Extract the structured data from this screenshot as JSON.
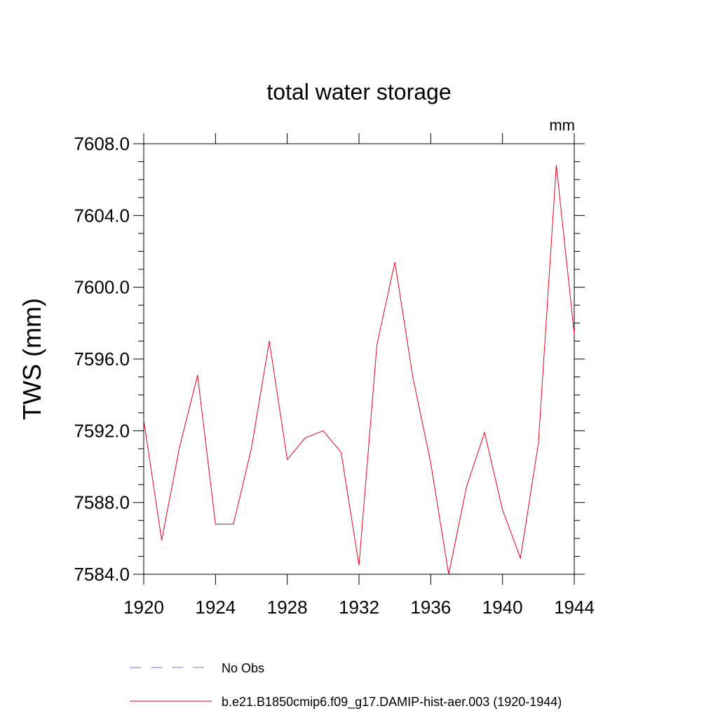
{
  "chart_data": {
    "type": "line",
    "title": "total water storage",
    "units_label": "mm",
    "xlabel": "",
    "ylabel": "TWS  (mm)",
    "xlim": [
      1920,
      1944
    ],
    "ylim": [
      7584.0,
      7608.0
    ],
    "x_ticks": [
      1920,
      1924,
      1928,
      1932,
      1936,
      1940,
      1944
    ],
    "x_tick_labels": [
      "1920",
      "1924",
      "1928",
      "1932",
      "1936",
      "1940",
      "1944"
    ],
    "y_ticks": [
      7584.0,
      7588.0,
      7592.0,
      7596.0,
      7600.0,
      7604.0,
      7608.0
    ],
    "y_tick_labels": [
      "7584.0",
      "7588.0",
      "7592.0",
      "7596.0",
      "7600.0",
      "7604.0",
      "7608.0"
    ],
    "grid": false,
    "legend_position": "bottom",
    "series": [
      {
        "name": "b.e21.B1850cmip6.f09_g17.DAMIP-hist-aer.003 (1920-1944)",
        "color": "#e8001c",
        "style": "solid",
        "x": [
          1920,
          1921,
          1922,
          1923,
          1924,
          1925,
          1926,
          1927,
          1928,
          1929,
          1930,
          1931,
          1932,
          1933,
          1934,
          1935,
          1936,
          1937,
          1938,
          1939,
          1940,
          1941,
          1942,
          1943,
          1944
        ],
        "values": [
          7592.6,
          7585.9,
          7591.1,
          7595.1,
          7586.8,
          7586.8,
          7591.0,
          7597.0,
          7590.4,
          7591.6,
          7592.0,
          7590.8,
          7584.5,
          7596.8,
          7601.4,
          7595.0,
          7590.2,
          7584.0,
          7588.9,
          7591.9,
          7587.6,
          7584.9,
          7591.3,
          7606.8,
          7597.4
        ]
      },
      {
        "name": "No Obs",
        "color": "#7b77c9",
        "style": "dashed",
        "x": [],
        "values": []
      }
    ]
  }
}
